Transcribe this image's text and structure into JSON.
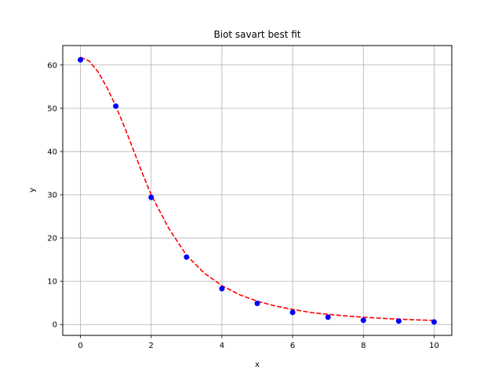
{
  "chart_data": {
    "type": "scatter",
    "title": "Biot savart best fit",
    "xlabel": "x",
    "ylabel": "y",
    "xlim": [
      -0.5,
      10.5
    ],
    "ylim": [
      -2.5,
      64.5
    ],
    "xticks": [
      0,
      2,
      4,
      6,
      8,
      10
    ],
    "yticks": [
      0,
      10,
      20,
      30,
      40,
      50,
      60
    ],
    "grid": true,
    "points": {
      "x": [
        0,
        1,
        2,
        3,
        4,
        5,
        6,
        7,
        8,
        9,
        10
      ],
      "y": [
        61.2,
        50.5,
        29.4,
        15.6,
        8.3,
        4.9,
        2.8,
        1.7,
        1.0,
        0.8,
        0.6
      ],
      "color": "#0000ff"
    },
    "fit_curve": {
      "style": "dashed",
      "color": "#ff0000",
      "x": [
        0,
        0.25,
        0.5,
        0.75,
        1,
        1.25,
        1.5,
        1.75,
        2,
        2.5,
        3,
        3.5,
        4,
        4.5,
        5,
        5.5,
        6,
        6.5,
        7,
        7.5,
        8,
        8.5,
        9,
        9.5,
        10
      ],
      "y": [
        61.8,
        60.9,
        58.4,
        54.8,
        50.5,
        45.6,
        40.3,
        35.0,
        30.0,
        22.2,
        16.0,
        11.9,
        9.0,
        6.9,
        5.4,
        4.3,
        3.5,
        2.8,
        2.35,
        2.0,
        1.7,
        1.45,
        1.25,
        1.08,
        0.95
      ]
    }
  }
}
